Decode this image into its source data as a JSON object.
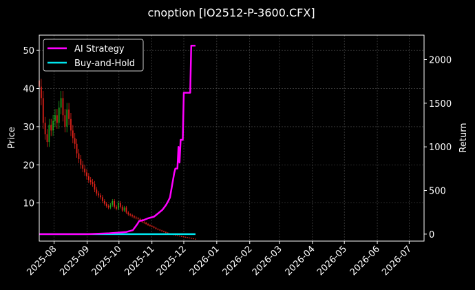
{
  "chart_data": {
    "type": "line",
    "title": "cnoption [IO2512-P-3600.CFX]",
    "ylabel_left": "Price",
    "ylabel_right": "Return",
    "x_ticks": [
      "2025-08",
      "2025-09",
      "2025-10",
      "2025-11",
      "2025-12",
      "2026-01",
      "2026-02",
      "2026-03",
      "2026-04",
      "2026-05",
      "2026-06",
      "2026-07"
    ],
    "xlim": [
      "2025-07-18",
      "2026-07-15"
    ],
    "ylim_left": [
      0,
      54
    ],
    "yticks_left": [
      10,
      20,
      30,
      40,
      50
    ],
    "ylim_right": [
      -80,
      2280
    ],
    "yticks_right": [
      0,
      500,
      1000,
      1500,
      2000
    ],
    "grid": true,
    "legend_position": "top-left",
    "colors": {
      "up": "#1fa81f",
      "down": "#e8231a",
      "strategy": "#ff00ff",
      "buyhold": "#00e5ee"
    },
    "series": [
      {
        "name": "AI Strategy",
        "axis": "right",
        "color": "#ff00ff",
        "points": [
          [
            "2025-07-18",
            0
          ],
          [
            "2025-09-01",
            0
          ],
          [
            "2025-09-12",
            5
          ],
          [
            "2025-09-22",
            10
          ],
          [
            "2025-10-01",
            18
          ],
          [
            "2025-10-08",
            25
          ],
          [
            "2025-10-14",
            45
          ],
          [
            "2025-10-18",
            110
          ],
          [
            "2025-10-20",
            150
          ],
          [
            "2025-10-24",
            160
          ],
          [
            "2025-10-28",
            180
          ],
          [
            "2025-11-03",
            200
          ],
          [
            "2025-11-07",
            240
          ],
          [
            "2025-11-11",
            280
          ],
          [
            "2025-11-14",
            330
          ],
          [
            "2025-11-16",
            370
          ],
          [
            "2025-11-18",
            420
          ],
          [
            "2025-11-20",
            560
          ],
          [
            "2025-11-22",
            700
          ],
          [
            "2025-11-23",
            750
          ],
          [
            "2025-11-25",
            750
          ],
          [
            "2025-11-26",
            1000
          ],
          [
            "2025-11-27",
            820
          ],
          [
            "2025-11-28",
            1080
          ],
          [
            "2025-11-30",
            1080
          ],
          [
            "2025-12-01",
            1620
          ],
          [
            "2025-12-02",
            1620
          ],
          [
            "2025-12-07",
            1620
          ],
          [
            "2025-12-08",
            2160
          ],
          [
            "2025-12-12",
            2160
          ]
        ]
      },
      {
        "name": "Buy-and-Hold",
        "axis": "right",
        "color": "#00e5ee",
        "points": [
          [
            "2025-07-18",
            0
          ],
          [
            "2025-12-12",
            0
          ]
        ]
      },
      {
        "name": "Price",
        "type": "candlestick",
        "axis": "left",
        "start": "2025-07-18",
        "end": "2025-12-12",
        "close": [
          40.5,
          37.5,
          31.0,
          28.0,
          26.0,
          30.5,
          29.0,
          31.5,
          33.0,
          31.0,
          35.0,
          37.5,
          33.0,
          30.0,
          34.5,
          32.0,
          29.0,
          27.0,
          25.5,
          23.0,
          21.5,
          20.0,
          19.0,
          18.0,
          17.0,
          16.0,
          15.5,
          15.0,
          13.5,
          12.5,
          12.0,
          11.5,
          10.5,
          9.8,
          9.2,
          8.8,
          9.5,
          10.5,
          9.0,
          8.5,
          10.0,
          9.0,
          8.0,
          8.8,
          7.5,
          7.0,
          6.8,
          6.5,
          6.2,
          6.0,
          5.8,
          5.5,
          5.0,
          4.8,
          4.5,
          4.2,
          4.0,
          3.8,
          3.5,
          3.2,
          3.0,
          2.8,
          2.6,
          2.4,
          2.2,
          2.0,
          1.9,
          1.8,
          1.6,
          1.5,
          1.4,
          1.3,
          1.2,
          1.1,
          1.0,
          0.9,
          0.8,
          0.7,
          0.6,
          0.5
        ]
      }
    ]
  }
}
